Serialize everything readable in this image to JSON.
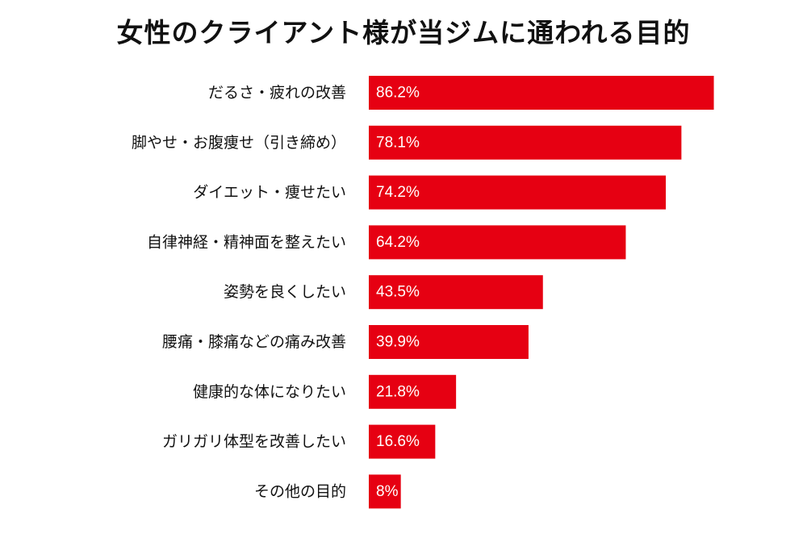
{
  "chart_data": {
    "type": "bar",
    "orientation": "horizontal",
    "title": "女性のクライアント様が当ジムに通われる目的",
    "categories": [
      "だるさ・疲れの改善",
      "脚やせ・お腹痩せ（引き締め）",
      "ダイエット・痩せたい",
      "自律神経・精神面を整えたい",
      "姿勢を良くしたい",
      "腰痛・膝痛などの痛み改善",
      "健康的な体になりたい",
      "ガリガリ体型を改善したい",
      "その他の目的"
    ],
    "values": [
      86.2,
      78.1,
      74.2,
      64.2,
      43.5,
      39.9,
      21.8,
      16.6,
      8
    ],
    "value_labels": [
      "86.2%",
      "78.1%",
      "74.2%",
      "64.2%",
      "43.5%",
      "39.9%",
      "21.8%",
      "16.6%",
      "8%"
    ],
    "xlim": [
      0,
      100
    ],
    "grid": false,
    "legend": "none",
    "bar_color": "#e60012",
    "value_label_color": "#ffffff"
  }
}
